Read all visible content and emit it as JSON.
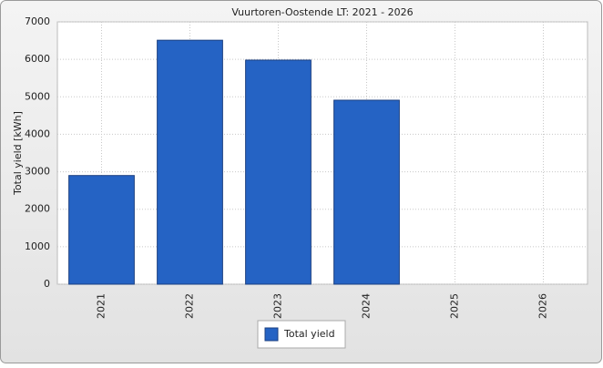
{
  "chart_data": {
    "type": "bar",
    "title": "Vuurtoren-Oostende LT: 2021 - 2026",
    "y_label": "Total yield [kWh]",
    "categories": [
      "2021",
      "2022",
      "2023",
      "2024",
      "2025",
      "2026"
    ],
    "series": [
      {
        "name": "Total yield",
        "color": "#2563c4",
        "values": [
          2900,
          6510,
          5980,
          4910,
          null,
          null
        ]
      }
    ],
    "ylim": [
      0,
      7000
    ],
    "yticks": [
      0,
      1000,
      2000,
      3000,
      4000,
      5000,
      6000,
      7000
    ],
    "grid": true
  }
}
